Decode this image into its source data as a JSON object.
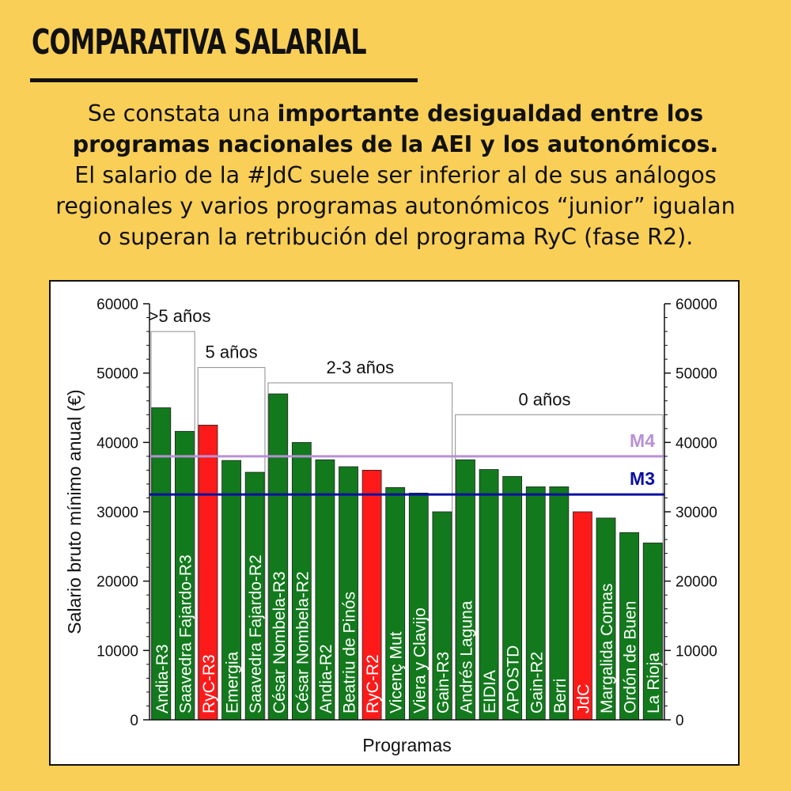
{
  "header": {
    "title": "COMPARATIVA SALARIAL",
    "intro_line1_plain": "Se constata una ",
    "intro_line1_bold": "importante desigualdad entre los",
    "intro_line2_bold": "programas nacionales de la AEI y los autonómicos.",
    "intro_line3": "El salario de la #JdC suele ser inferior al de sus análogos",
    "intro_line4": "regionales y varios programas autonómicos “junior” igualan",
    "intro_line5": "o superan la retribución del programa RyC (fase R2)."
  },
  "colors": {
    "background": "#F9CF57",
    "bar_green": "#127A1C",
    "bar_red": "#FF1A1A",
    "line_m4": "#B790D6",
    "line_m3": "#0A0FA0"
  },
  "chart_data": {
    "type": "bar",
    "xlabel": "Programas",
    "ylabel": "Salario bruto mínimo anual (€)",
    "ylim": [
      0,
      60000
    ],
    "yticks": [
      "0",
      "10000",
      "20000",
      "30000",
      "40000",
      "50000",
      "60000"
    ],
    "categories": [
      "Andia-R3",
      "Saavedra Fajardo-R3",
      "RyC-R3",
      "Emergia",
      "Saavedra Fajardo-R2",
      "César Nombela-R3",
      "César Nombela-R2",
      "Andia-R2",
      "Beatriu de Pinós",
      "RyC-R2",
      "Vicenç Mut",
      "Viera y Clavijo",
      "Gain-R3",
      "Andrés Laguna",
      "EIDIA",
      "APOSTD",
      "Gain-R2",
      "Berri",
      "JdC",
      "Margalida Comas",
      "Ordón de Buen",
      "La Rioja"
    ],
    "values": [
      45000,
      41600,
      42500,
      37400,
      35700,
      47000,
      40000,
      37500,
      36500,
      36000,
      33500,
      32700,
      30000,
      37500,
      36100,
      35100,
      33600,
      33600,
      30000,
      29100,
      27000,
      25500
    ],
    "bar_colors": [
      "green",
      "green",
      "red",
      "green",
      "green",
      "green",
      "green",
      "green",
      "green",
      "red",
      "green",
      "green",
      "green",
      "green",
      "green",
      "green",
      "green",
      "green",
      "red",
      "green",
      "green",
      "green"
    ],
    "reference_lines": [
      {
        "name": "M4",
        "value": 38000,
        "color": "#B790D6"
      },
      {
        "name": "M3",
        "value": 32500,
        "color": "#0A0FA0"
      }
    ],
    "groups": [
      {
        "label": ">5 años",
        "from_index": 0,
        "to_index": 1,
        "level": 56000
      },
      {
        "label": "5 años",
        "from_index": 2,
        "to_index": 4,
        "level": 50800
      },
      {
        "label": "2-3 años",
        "from_index": 5,
        "to_index": 12,
        "level": 48600
      },
      {
        "label": "0 años",
        "from_index": 13,
        "to_index": 21,
        "level": 44000
      }
    ],
    "grid": false
  }
}
